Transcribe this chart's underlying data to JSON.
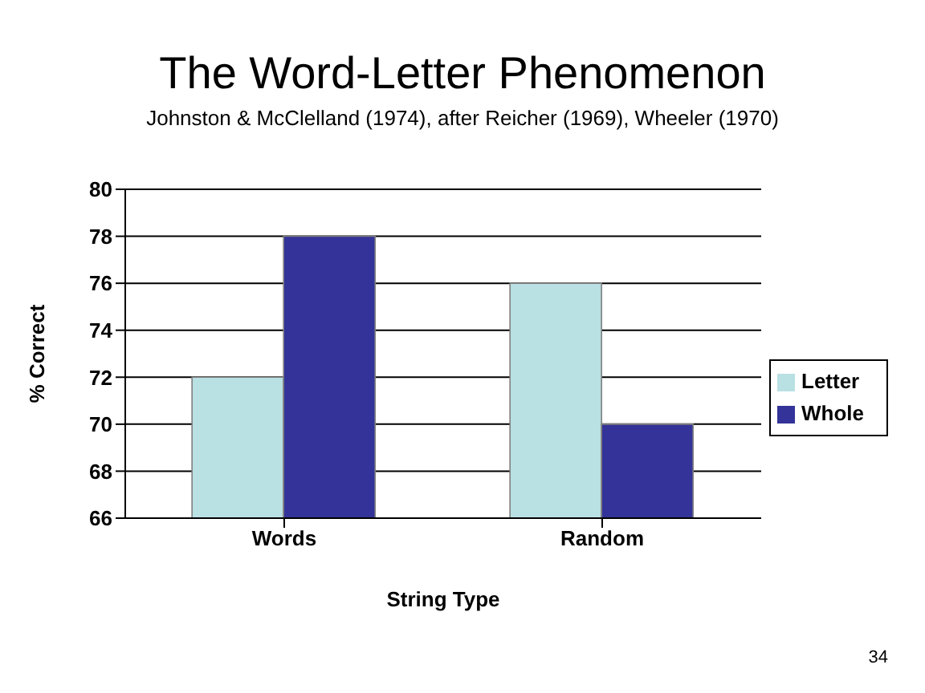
{
  "chart_data": {
    "type": "bar",
    "title": "The Word-Letter Phenomenon",
    "subtitle": "Johnston & McClelland (1974), after Reicher (1969), Wheeler (1970)",
    "xlabel": "String Type",
    "ylabel": "% Correct",
    "categories": [
      "Words",
      "Random"
    ],
    "series": [
      {
        "name": "Letter",
        "color": "#b9e0e3",
        "values": [
          72,
          76
        ]
      },
      {
        "name": "Whole",
        "color": "#333399",
        "values": [
          78,
          70
        ]
      }
    ],
    "ylim": [
      66,
      80
    ],
    "yticks": [
      66,
      68,
      70,
      72,
      74,
      76,
      78,
      80
    ],
    "grid": "y",
    "legend": "right",
    "annotations": [
      "34"
    ]
  }
}
